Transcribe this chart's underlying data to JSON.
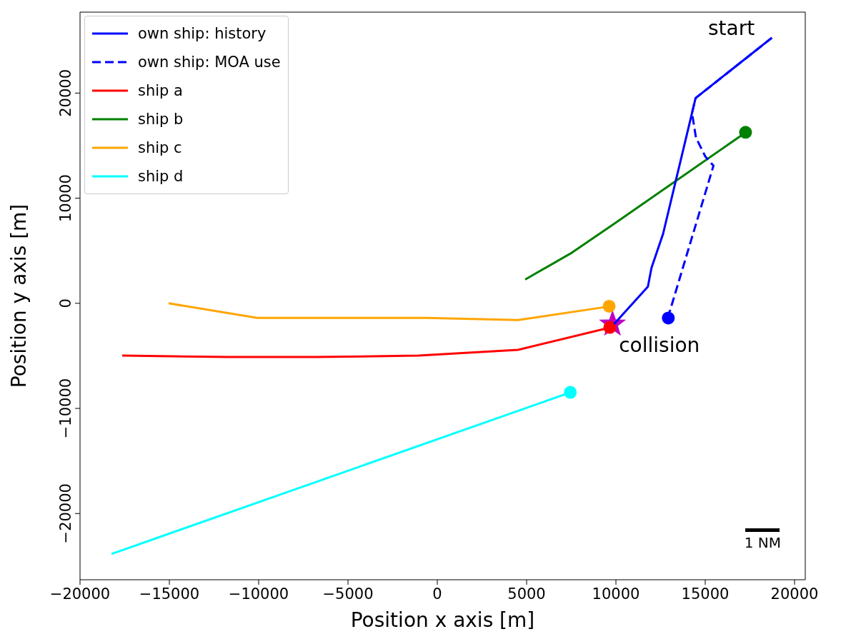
{
  "chart_data": {
    "type": "line",
    "xlabel": "Position x axis [m]",
    "ylabel": "Position y axis [m]",
    "xlim": [
      -20000,
      20600
    ],
    "ylim": [
      -26300,
      27700
    ],
    "xticks": [
      -20000,
      -15000,
      -10000,
      -5000,
      0,
      5000,
      10000,
      15000,
      20000
    ],
    "yticks": [
      -20000,
      -10000,
      0,
      10000,
      20000
    ],
    "legend": "top left",
    "annotations": [
      {
        "text": "start",
        "x": 18730,
        "y": 25260
      },
      {
        "text": "collision",
        "x": 9780,
        "y": -2010
      },
      "1 NM"
    ],
    "series": [
      {
        "type": "scatter",
        "marker": "star",
        "color": "#bf00bf",
        "x": [
          9780
        ],
        "values": [
          -2010
        ]
      },
      {
        "type": "scatter",
        "marker": "circle",
        "x": [
          12900,
          9630,
          17220,
          9590,
          7420
        ],
        "values": [
          -1430,
          -2320,
          16210,
          -310,
          -8500
        ],
        "colors": [
          "#0000ff",
          "#ff0000",
          "#008000",
          "#ffa500",
          "#00ffff"
        ]
      },
      {
        "name": "own ship: history",
        "color": "#0000ff",
        "line_style": "solid",
        "x": [
          18730,
          14460,
          12640,
          11990,
          11790,
          9890
        ],
        "values": [
          25260,
          19520,
          6610,
          3370,
          1580,
          -1990
        ]
      },
      {
        "name": "own ship: MOA use",
        "color": "#0000ff",
        "line_style": "dashed",
        "x": [
          18730,
          14460,
          14260,
          14480,
          15000,
          15460,
          12900
        ],
        "values": [
          25260,
          19520,
          18110,
          15760,
          13980,
          13090,
          -1430
        ]
      },
      {
        "name": "ship a",
        "color": "#ff0000",
        "line_style": "solid",
        "x": [
          -17640,
          -11740,
          -6740,
          -1040,
          4520,
          9630
        ],
        "values": [
          -4980,
          -5110,
          -5110,
          -4980,
          -4430,
          -2320
        ]
      },
      {
        "name": "ship b",
        "color": "#008000",
        "line_style": "solid",
        "x": [
          4920,
          7540,
          9970,
          17220
        ],
        "values": [
          2260,
          4820,
          7640,
          16210
        ]
      },
      {
        "name": "ship c",
        "color": "#ffa500",
        "line_style": "solid",
        "x": [
          -15040,
          -10080,
          -640,
          4520,
          9590
        ],
        "values": [
          0,
          -1390,
          -1390,
          -1590,
          -310
        ]
      },
      {
        "name": "ship d",
        "color": "#00ffff",
        "line_style": "solid",
        "x": [
          -18240,
          7420
        ],
        "values": [
          -23850,
          -8500
        ]
      }
    ]
  }
}
